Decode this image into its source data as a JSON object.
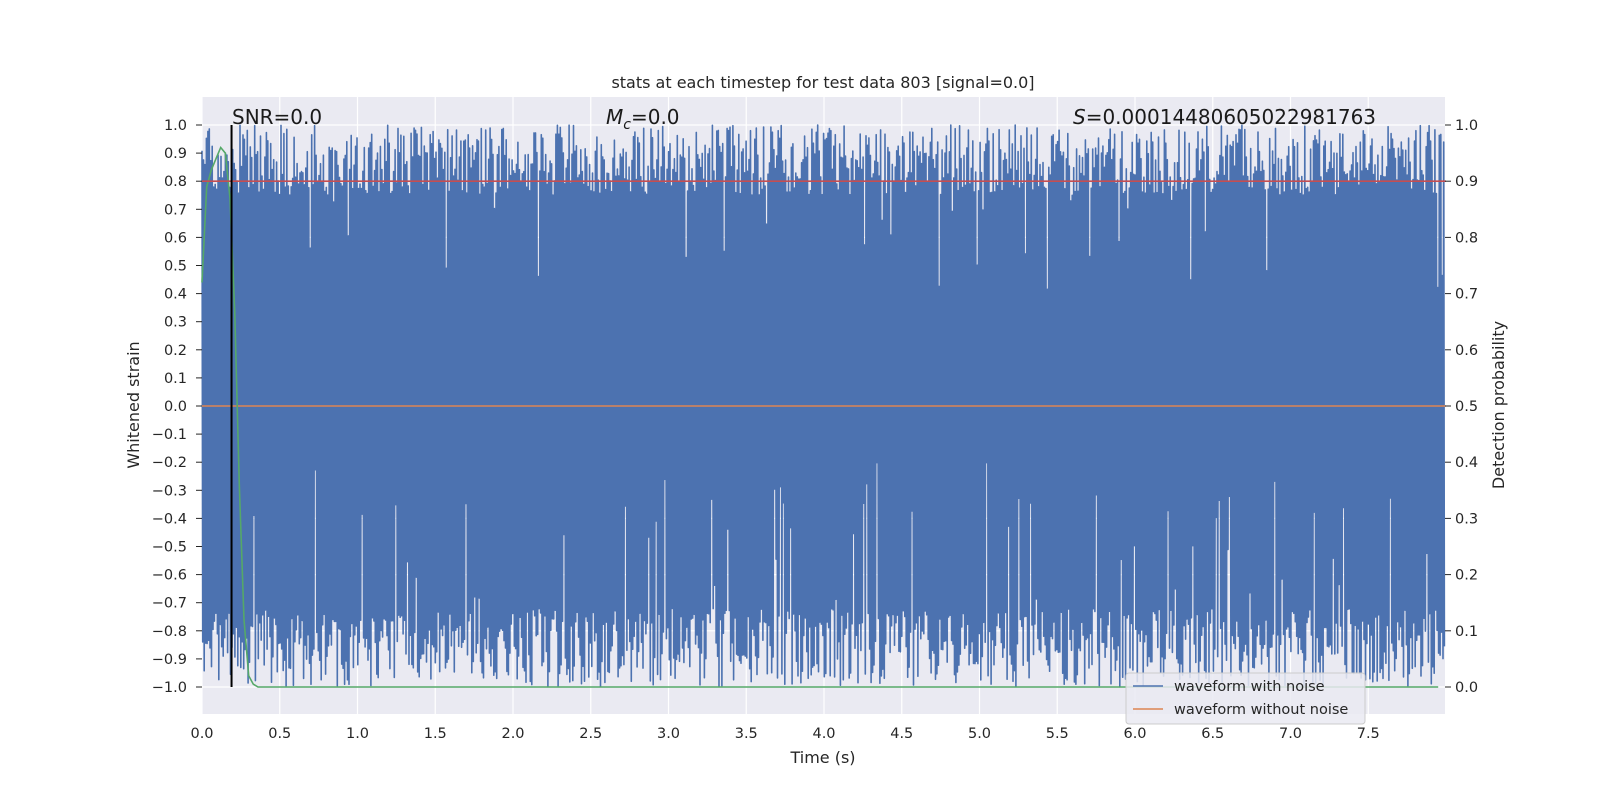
{
  "chart_data": {
    "type": "line",
    "title": "stats at each timestep for test data 803 [signal=0.0]",
    "xlabel": "Time (s)",
    "ylabel_left": "Whitened strain",
    "ylabel_right": "Detection probability",
    "xlim": [
      0.0,
      8.0
    ],
    "ylim_left": [
      -1.1,
      1.1
    ],
    "ylim_right": [
      -0.05,
      1.05
    ],
    "x_ticks": [
      "0.0",
      "0.5",
      "1.0",
      "1.5",
      "2.0",
      "2.5",
      "3.0",
      "3.5",
      "4.0",
      "4.5",
      "5.0",
      "5.5",
      "6.0",
      "6.5",
      "7.0",
      "7.5"
    ],
    "y_ticks_left": [
      "1.0",
      "0.9",
      "0.8",
      "0.7",
      "0.6",
      "0.5",
      "0.4",
      "0.3",
      "0.2",
      "0.1",
      "0.0",
      "−0.1",
      "−0.2",
      "−0.3",
      "−0.4",
      "−0.5",
      "−0.6",
      "−0.7",
      "−0.8",
      "−0.9",
      "−1.0"
    ],
    "y_ticks_right": [
      "1.0",
      "0.9",
      "0.8",
      "0.7",
      "0.6",
      "0.5",
      "0.4",
      "0.3",
      "0.2",
      "0.1",
      "0.0"
    ],
    "grid": true,
    "legend_position": "lower-right",
    "annotations": {
      "snr": "SNR=0.0",
      "mc_symbol": "M",
      "mc_sub": "c",
      "mc_value": "=0.0",
      "s_symbol": "S",
      "s_value": "=0.00014480605022981763"
    },
    "series": [
      {
        "name": "waveform with noise",
        "color": "#4c72b0",
        "axis": "left",
        "description_values": {
          "x_range": [
            0.0,
            7.99
          ],
          "y_range": [
            -1.0,
            1.0
          ]
        }
      },
      {
        "name": "waveform without noise",
        "color": "#dd8452",
        "axis": "left",
        "x": [
          0.0,
          8.0
        ],
        "y": [
          0.0,
          0.0
        ]
      },
      {
        "axis": "right",
        "color": "#55a868",
        "x": [
          0.0,
          0.03,
          0.06,
          0.09,
          0.12,
          0.15,
          0.18,
          0.21,
          0.24,
          0.27,
          0.3,
          0.33,
          0.36,
          0.4,
          1.0,
          2.0,
          3.0,
          4.0,
          5.0,
          6.0,
          7.0,
          7.95
        ],
        "y": [
          0.72,
          0.89,
          0.92,
          0.94,
          0.96,
          0.95,
          0.87,
          0.67,
          0.36,
          0.12,
          0.02,
          0.005,
          0.0,
          0.0,
          0.0,
          0.0,
          0.0,
          0.0,
          0.0,
          0.0,
          0.0,
          0.0
        ]
      },
      {
        "axis": "right",
        "color": "#c44e52",
        "x": [
          0.0,
          8.0
        ],
        "y": [
          0.9,
          0.9
        ]
      }
    ],
    "vline": {
      "x": 0.19,
      "color": "#000000"
    }
  }
}
